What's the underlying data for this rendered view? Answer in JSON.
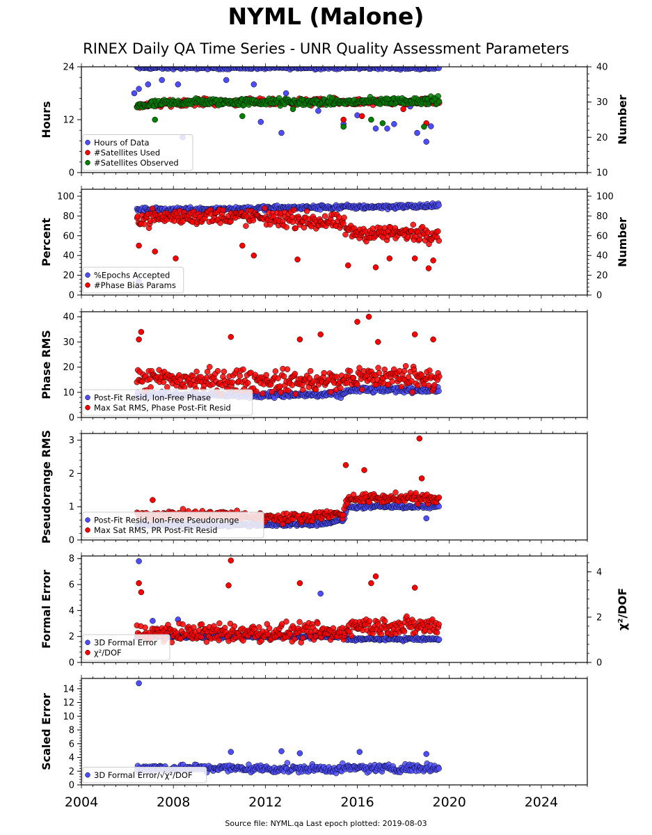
{
  "header": {
    "title": "NYML (Malone)",
    "subtitle": "RINEX Daily QA Time Series - UNR Quality Assessment Parameters"
  },
  "footer": {
    "text": "Source file: NYML.qa Last epoch plotted: 2019-08-03"
  },
  "colors": {
    "blue": "#4d4dff",
    "red": "#ff0000",
    "green": "#008000",
    "edge": "#000000"
  },
  "chart_data": [
    {
      "type": "scatter",
      "ylabel": "Hours",
      "ylabel_right": "Number",
      "xlim": [
        2004,
        2026
      ],
      "ylim": [
        0,
        24
      ],
      "ylim_right": [
        10,
        40
      ],
      "yticks": [
        0,
        12,
        24
      ],
      "yticks_right": [
        10,
        20,
        30,
        40
      ],
      "legend_position": "lower-left",
      "series": [
        {
          "name": "Hours of Data",
          "color": "blue",
          "axis": "left",
          "trend": [
            [
              2006.4,
              23.8
            ],
            [
              2019.6,
              23.8
            ]
          ],
          "spread": 0.3,
          "outliers": [
            [
              2006.3,
              18
            ],
            [
              2006.5,
              19
            ],
            [
              2006.9,
              20
            ],
            [
              2007.5,
              21
            ],
            [
              2008.2,
              20
            ],
            [
              2008.4,
              8
            ],
            [
              2010.3,
              21
            ],
            [
              2011.5,
              20
            ],
            [
              2011.8,
              11.5
            ],
            [
              2012.7,
              9
            ],
            [
              2012.9,
              18
            ],
            [
              2014.3,
              14
            ],
            [
              2015.4,
              11
            ],
            [
              2016.0,
              13
            ],
            [
              2016.8,
              10
            ],
            [
              2017.3,
              10
            ],
            [
              2017.6,
              11
            ],
            [
              2018.3,
              15
            ],
            [
              2018.6,
              9
            ],
            [
              2019.0,
              7
            ],
            [
              2019.2,
              10.5
            ]
          ]
        },
        {
          "name": "#Satellites Used",
          "color": "red",
          "axis": "right",
          "trend": [
            [
              2006.4,
              29
            ],
            [
              2008.5,
              30
            ],
            [
              2012,
              30
            ],
            [
              2015.5,
              30
            ],
            [
              2019.6,
              30
            ]
          ],
          "spread": 0.8,
          "outliers": [
            [
              2015.4,
              25
            ],
            [
              2016.2,
              26
            ],
            [
              2018.0,
              28
            ],
            [
              2019.0,
              24
            ]
          ]
        },
        {
          "name": "#Satellites Observed",
          "color": "green",
          "axis": "right",
          "trend": [
            [
              2006.4,
              29
            ],
            [
              2008.5,
              30
            ],
            [
              2012,
              30
            ],
            [
              2015.5,
              30
            ],
            [
              2019.6,
              30.5
            ]
          ],
          "spread": 0.9,
          "outliers": [
            [
              2007.2,
              25
            ],
            [
              2011.0,
              26
            ],
            [
              2013.2,
              28
            ],
            [
              2015.4,
              23
            ],
            [
              2016.6,
              25
            ],
            [
              2017.1,
              24
            ],
            [
              2018.9,
              23
            ]
          ]
        }
      ]
    },
    {
      "type": "scatter",
      "ylabel": "Percent",
      "ylabel_right": "Number",
      "xlim": [
        2004,
        2026
      ],
      "ylim": [
        0,
        107
      ],
      "ylim_right": [
        0,
        107
      ],
      "yticks": [
        0,
        20,
        40,
        60,
        80,
        100
      ],
      "yticks_right": [
        0,
        20,
        40,
        60,
        80,
        100
      ],
      "legend_position": "lower-left",
      "series": [
        {
          "name": "%Epochs Accepted",
          "color": "blue",
          "axis": "left",
          "trend": [
            [
              2006.4,
              86
            ],
            [
              2015.5,
              89
            ],
            [
              2019.6,
              90
            ]
          ],
          "spread": 2,
          "outliers": [
            [
              2006.5,
              14
            ]
          ]
        },
        {
          "name": "#Phase Bias Params",
          "color": "red",
          "axis": "right",
          "trend": [
            [
              2006.4,
              78
            ],
            [
              2010,
              80
            ],
            [
              2013,
              77
            ],
            [
              2015.4,
              72
            ],
            [
              2015.6,
              63
            ],
            [
              2019.6,
              62
            ]
          ],
          "spread": 7,
          "outliers": [
            [
              2006.5,
              50
            ],
            [
              2007.2,
              44
            ],
            [
              2008.1,
              37
            ],
            [
              2011.0,
              50
            ],
            [
              2011.5,
              40
            ],
            [
              2013.4,
              36
            ],
            [
              2015.6,
              30
            ],
            [
              2016.8,
              28
            ],
            [
              2017.4,
              37
            ],
            [
              2018.5,
              37
            ],
            [
              2019.1,
              27
            ],
            [
              2019.3,
              35
            ]
          ]
        }
      ]
    },
    {
      "type": "scatter",
      "ylabel": "Phase RMS",
      "xlim": [
        2004,
        2026
      ],
      "ylim": [
        0,
        42
      ],
      "yticks": [
        0,
        10,
        20,
        30,
        40
      ],
      "legend_position": "lower-left",
      "series": [
        {
          "name": "Post-Fit Resid, Ion-Free Phase",
          "color": "blue",
          "axis": "left",
          "trend": [
            [
              2006.4,
              9
            ],
            [
              2015.4,
              9
            ],
            [
              2015.6,
              11
            ],
            [
              2019.6,
              11
            ]
          ],
          "spread": 1,
          "outliers": []
        },
        {
          "name": "Max Sat RMS, Phase Post-Fit Resid",
          "color": "red",
          "axis": "left",
          "trend": [
            [
              2006.4,
              15
            ],
            [
              2015.4,
              14
            ],
            [
              2015.6,
              16
            ],
            [
              2019.6,
              16
            ]
          ],
          "spread": 4,
          "outliers": [
            [
              2006.6,
              34
            ],
            [
              2006.5,
              31
            ],
            [
              2010.5,
              32
            ],
            [
              2013.5,
              31
            ],
            [
              2014.4,
              33
            ],
            [
              2016.0,
              38
            ],
            [
              2016.5,
              40
            ],
            [
              2016.9,
              30
            ],
            [
              2018.5,
              33
            ],
            [
              2019.3,
              31
            ]
          ]
        }
      ]
    },
    {
      "type": "scatter",
      "ylabel": "Pseudorange RMS",
      "xlim": [
        2004,
        2026
      ],
      "ylim": [
        0,
        3.2
      ],
      "yticks": [
        0,
        1,
        2,
        3
      ],
      "legend_position": "lower-left",
      "series": [
        {
          "name": "Post-Fit Resid, Ion-Free Pseudorange",
          "color": "blue",
          "axis": "left",
          "trend": [
            [
              2006.4,
              0.45
            ],
            [
              2012,
              0.45
            ],
            [
              2014.5,
              0.5
            ],
            [
              2015.4,
              0.6
            ],
            [
              2015.6,
              1.0
            ],
            [
              2019.6,
              1.0
            ]
          ],
          "spread": 0.05,
          "outliers": [
            [
              2019.0,
              0.65
            ]
          ]
        },
        {
          "name": "Max Sat RMS, PR Post-Fit Resid",
          "color": "red",
          "axis": "left",
          "trend": [
            [
              2006.4,
              0.75
            ],
            [
              2010,
              0.75
            ],
            [
              2013,
              0.65
            ],
            [
              2015.4,
              0.8
            ],
            [
              2015.6,
              1.25
            ],
            [
              2019.6,
              1.25
            ]
          ],
          "spread": 0.12,
          "outliers": [
            [
              2007.1,
              1.2
            ],
            [
              2015.5,
              2.25
            ],
            [
              2016.3,
              2.1
            ],
            [
              2018.7,
              3.05
            ],
            [
              2018.8,
              1.85
            ]
          ]
        }
      ]
    },
    {
      "type": "scatter",
      "ylabel": "Formal Error",
      "ylabel_right": "χ²/DOF",
      "xlim": [
        2004,
        2026
      ],
      "ylim": [
        0,
        8.2
      ],
      "ylim_right": [
        0,
        4.7
      ],
      "yticks": [
        0,
        2,
        4,
        6,
        8
      ],
      "yticks_right": [
        0,
        2,
        4
      ],
      "legend_position": "lower-left",
      "series": [
        {
          "name": "3D Formal Error",
          "color": "blue",
          "axis": "left",
          "trend": [
            [
              2006.4,
              2.0
            ],
            [
              2015.4,
              2.0
            ],
            [
              2015.6,
              1.8
            ],
            [
              2019.6,
              1.8
            ]
          ],
          "spread": 0.1,
          "outliers": [
            [
              2006.5,
              7.8
            ],
            [
              2007.1,
              3.2
            ],
            [
              2008.2,
              3.3
            ],
            [
              2014.4,
              5.3
            ]
          ]
        },
        {
          "name": "χ²/DOF",
          "color": "red",
          "axis": "right",
          "trend": [
            [
              2006.4,
              1.3
            ],
            [
              2015.4,
              1.3
            ],
            [
              2015.6,
              1.6
            ],
            [
              2019.6,
              1.6
            ]
          ],
          "spread": 0.35,
          "outliers": [
            [
              2006.5,
              3.5
            ],
            [
              2006.6,
              3.1
            ],
            [
              2010.5,
              4.5
            ],
            [
              2010.4,
              3.4
            ],
            [
              2013.5,
              3.5
            ],
            [
              2016.8,
              3.8
            ],
            [
              2016.6,
              3.5
            ],
            [
              2018.5,
              3.3
            ]
          ]
        }
      ]
    },
    {
      "type": "scatter",
      "ylabel": "Scaled Error",
      "xlim": [
        2004,
        2026
      ],
      "ylim": [
        0,
        15.5
      ],
      "yticks": [
        0,
        2,
        4,
        6,
        8,
        10,
        12,
        14
      ],
      "xticks": [
        2004,
        2008,
        2012,
        2016,
        2020,
        2024
      ],
      "legend_position": "lower-left",
      "series": [
        {
          "name": "3D Formal Error/√χ²/DOF",
          "color": "blue",
          "axis": "left",
          "trend": [
            [
              2006.4,
              2.5
            ],
            [
              2015.4,
              2.3
            ],
            [
              2015.6,
              2.4
            ],
            [
              2019.6,
              2.5
            ]
          ],
          "spread": 0.5,
          "outliers": [
            [
              2006.5,
              14.8
            ],
            [
              2010.5,
              4.8
            ],
            [
              2012.7,
              4.9
            ],
            [
              2013.5,
              4.6
            ],
            [
              2016.1,
              4.8
            ],
            [
              2019.0,
              4.5
            ]
          ]
        }
      ]
    }
  ]
}
